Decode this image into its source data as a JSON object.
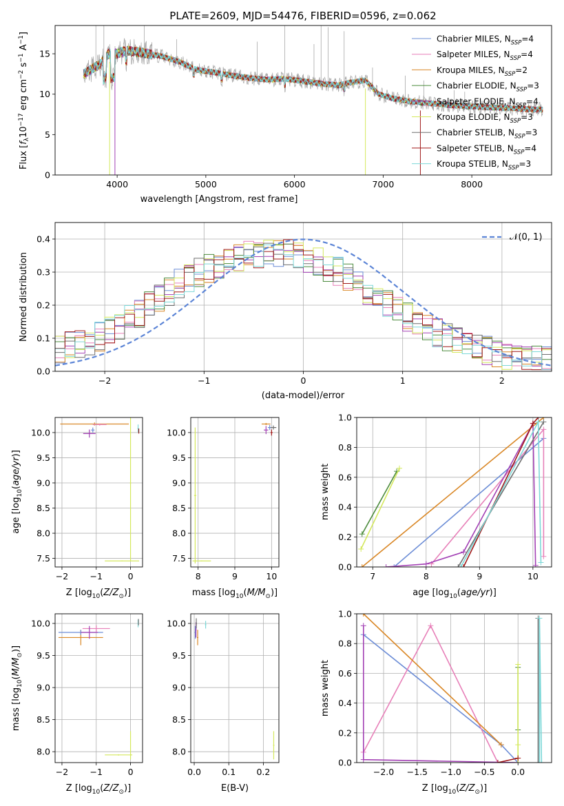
{
  "figure": {
    "title": "PLATE=2609, MJD=54476, FIBERID=0596, z=0.062"
  },
  "colors": {
    "ChabrierMILES": "#6b8cd6",
    "SalpeterMILES": "#e77fb8",
    "KroupaMILES": "#d98624",
    "ChabrierELODIE": "#4a8a3b",
    "SalpeterELODIE": "#a23fb4",
    "KroupaELODIE": "#d4e85c",
    "ChabrierSTELIB": "#6e6e6e",
    "SalpeterSTELIB": "#a01818",
    "KroupaSTELIB": "#7cd8d8"
  },
  "chart_data": [
    {
      "id": "spectrum",
      "type": "line",
      "xlabel": "wavelength [Angstrom, rest frame]",
      "ylabel": "Flux [f_λ 10^-17 erg cm^-2 s^-1 A^-1]",
      "xlim": [
        3300,
        8900
      ],
      "ylim": [
        0,
        18.5
      ],
      "xticks": [
        4000,
        5000,
        6000,
        7000,
        8000
      ],
      "yticks": [
        0,
        5,
        10,
        15
      ],
      "grid": false,
      "legend_position": "top-right",
      "data_line": {
        "name": "data",
        "color": "#a8a8a8"
      },
      "continuum_points": [
        [
          3620,
          12.5
        ],
        [
          3700,
          13.0
        ],
        [
          3800,
          13.6
        ],
        [
          3900,
          15.0
        ],
        [
          4000,
          15.0
        ],
        [
          4100,
          15.4
        ],
        [
          4300,
          15.1
        ],
        [
          4500,
          14.7
        ],
        [
          4700,
          14.0
        ],
        [
          4900,
          13.0
        ],
        [
          5100,
          12.7
        ],
        [
          5300,
          12.3
        ],
        [
          5500,
          12.0
        ],
        [
          5700,
          11.8
        ],
        [
          5900,
          11.9
        ],
        [
          6100,
          11.6
        ],
        [
          6300,
          11.3
        ],
        [
          6500,
          11.1
        ],
        [
          6600,
          11.4
        ],
        [
          6800,
          11.7
        ],
        [
          6950,
          10.0
        ],
        [
          7100,
          9.5
        ],
        [
          7300,
          9.1
        ],
        [
          7500,
          8.9
        ],
        [
          7800,
          8.6
        ],
        [
          8100,
          8.4
        ],
        [
          8400,
          8.3
        ],
        [
          8700,
          8.1
        ],
        [
          8800,
          8.1
        ]
      ],
      "series": [
        {
          "name": "Chabrier MILES",
          "nssp": "=4",
          "color_key": "ChabrierMILES"
        },
        {
          "name": "Salpeter MILES",
          "nssp": "=4",
          "color_key": "SalpeterMILES"
        },
        {
          "name": "Kroupa MILES",
          "nssp": "=2",
          "color_key": "KroupaMILES"
        },
        {
          "name": "Chabrier ELODIE",
          "nssp": "=3",
          "color_key": "ChabrierELODIE"
        },
        {
          "name": "Salpeter ELODIE",
          "nssp": "=4",
          "color_key": "SalpeterELODIE"
        },
        {
          "name": "Kroupa ELODIE",
          "nssp": "=3",
          "color_key": "KroupaELODIE"
        },
        {
          "name": "Chabrier STELIB",
          "nssp": "=3",
          "color_key": "ChabrierSTELIB"
        },
        {
          "name": "Salpeter STELIB",
          "nssp": "=4",
          "color_key": "SalpeterSTELIB"
        },
        {
          "name": "Kroupa STELIB",
          "nssp": "=3",
          "color_key": "KroupaSTELIB"
        }
      ]
    },
    {
      "id": "residuals",
      "type": "line",
      "xlabel": "(data-model)/error",
      "ylabel": "Normed distribution",
      "xlim": [
        -2.5,
        2.5
      ],
      "ylim": [
        0,
        0.45
      ],
      "xticks": [
        -2,
        -1,
        0,
        1,
        2
      ],
      "yticks": [
        0.0,
        0.1,
        0.2,
        0.3,
        0.4
      ],
      "grid": true,
      "legend_position": "top-right",
      "gaussian": {
        "label": "𝒩(0, 1)",
        "mu": 0,
        "sigma": 1,
        "color": "#5b84d6"
      },
      "base_heights": [
        0.07,
        0.075,
        0.08,
        0.09,
        0.105,
        0.12,
        0.14,
        0.155,
        0.175,
        0.2,
        0.22,
        0.24,
        0.265,
        0.285,
        0.3,
        0.31,
        0.325,
        0.335,
        0.345,
        0.35,
        0.355,
        0.36,
        0.36,
        0.355,
        0.35,
        0.34,
        0.33,
        0.315,
        0.3,
        0.285,
        0.265,
        0.245,
        0.225,
        0.205,
        0.185,
        0.165,
        0.145,
        0.13,
        0.115,
        0.1,
        0.09,
        0.08,
        0.07,
        0.065,
        0.055,
        0.05,
        0.045,
        0.04,
        0.035,
        0.03
      ],
      "series_keys": [
        "ChabrierMILES",
        "SalpeterMILES",
        "KroupaMILES",
        "ChabrierELODIE",
        "SalpeterELODIE",
        "KroupaELODIE",
        "ChabrierSTELIB",
        "SalpeterSTELIB",
        "KroupaSTELIB"
      ]
    },
    {
      "id": "age_vs_Z",
      "type": "scatter",
      "xlabel": "Z [log10(Z/Z⊙)]",
      "ylabel": "age [log10(age/yr)]",
      "xlim": [
        -2.2,
        0.35
      ],
      "ylim": [
        7.33,
        10.3
      ],
      "xticks": [
        -2,
        -1,
        0
      ],
      "yticks": [
        7.5,
        8.0,
        8.5,
        9.0,
        9.5,
        10.0
      ],
      "grid": true,
      "points": [
        {
          "color_key": "KroupaMILES",
          "x": -1.05,
          "y": 10.17,
          "xerr": 1.0,
          "yerr": 0.03
        },
        {
          "color_key": "SalpeterMILES",
          "x": -0.9,
          "y": 10.16,
          "xerr": 0.2,
          "yerr": 0.02
        },
        {
          "color_key": "SalpeterELODIE",
          "x": -1.2,
          "y": 9.98,
          "xerr": 0.18,
          "yerr": 0.08
        },
        {
          "color_key": "ChabrierMILES",
          "x": -1.1,
          "y": 10.05,
          "xerr": 0.05,
          "yerr": 0.05
        },
        {
          "color_key": "KroupaELODIE",
          "x": 0.0,
          "y": 9.0,
          "xerr": 0.02,
          "yerr": 1.55
        },
        {
          "color_key": "KroupaELODIE",
          "x": -0.25,
          "y": 7.45,
          "xerr": 0.5,
          "yerr": 0.01
        },
        {
          "color_key": "KroupaSTELIB",
          "x": 0.22,
          "y": 10.08,
          "xerr": 0.02,
          "yerr": 0.08
        },
        {
          "color_key": "SalpeterSTELIB",
          "x": 0.24,
          "y": 10.03,
          "xerr": 0.01,
          "yerr": 0.05
        }
      ]
    },
    {
      "id": "age_vs_mass",
      "type": "scatter",
      "xlabel": "mass [log10(M/M⊙)]",
      "ylabel": "",
      "xlim": [
        7.8,
        10.2
      ],
      "ylim": [
        7.33,
        10.3
      ],
      "xticks": [
        8,
        9,
        10
      ],
      "yticks": [
        7.5,
        8.0,
        8.5,
        9.0,
        9.5,
        10.0
      ],
      "grid": true,
      "points": [
        {
          "color_key": "KroupaELODIE",
          "x": 7.92,
          "y": 8.75,
          "xerr": 0.03,
          "yerr": 1.35
        },
        {
          "color_key": "KroupaELODIE",
          "x": 8.1,
          "y": 7.45,
          "xerr": 0.25,
          "yerr": 0.01
        },
        {
          "color_key": "KroupaMILES",
          "x": 9.85,
          "y": 10.17,
          "xerr": 0.12,
          "yerr": 0.02
        },
        {
          "color_key": "SalpeterELODIE",
          "x": 9.85,
          "y": 10.05,
          "xerr": 0.06,
          "yerr": 0.08
        },
        {
          "color_key": "ChabrierMILES",
          "x": 9.95,
          "y": 10.1,
          "xerr": 0.05,
          "yerr": 0.05
        },
        {
          "color_key": "SalpeterSTELIB",
          "x": 10.0,
          "y": 10.0,
          "xerr": 0.03,
          "yerr": 0.06
        },
        {
          "color_key": "ChabrierSTELIB",
          "x": 10.05,
          "y": 10.1,
          "xerr": 0.08,
          "yerr": 0.04
        }
      ]
    },
    {
      "id": "weight_vs_age",
      "type": "line",
      "xlabel": "age [log10(age/yr)]",
      "ylabel": "mass weight",
      "xlim": [
        6.7,
        10.35
      ],
      "ylim": [
        0,
        1
      ],
      "xticks": [
        7,
        8,
        9,
        10
      ],
      "yticks": [
        0.0,
        0.2,
        0.4,
        0.6,
        0.8,
        1.0
      ],
      "grid": true,
      "series": [
        {
          "color_key": "ChabrierMILES",
          "x": [
            7.4,
            10.2
          ],
          "y": [
            0.0,
            0.86
          ]
        },
        {
          "color_key": "SalpeterMILES",
          "x": [
            8.1,
            10.2,
            10.2
          ],
          "y": [
            0.02,
            0.92,
            0.07
          ]
        },
        {
          "color_key": "KroupaMILES",
          "x": [
            6.8,
            10.2
          ],
          "y": [
            0.0,
            1.0
          ]
        },
        {
          "color_key": "ChabrierELODIE",
          "x": [
            6.8,
            7.45
          ],
          "y": [
            0.22,
            0.64
          ]
        },
        {
          "color_key": "SalpeterELODIE",
          "x": [
            7.25,
            8.0,
            8.7,
            10.0,
            10.05
          ],
          "y": [
            0.0,
            0.02,
            0.1,
            0.96,
            0.01
          ]
        },
        {
          "color_key": "KroupaELODIE",
          "x": [
            6.78,
            7.5
          ],
          "y": [
            0.12,
            0.66
          ]
        },
        {
          "color_key": "ChabrierSTELIB",
          "x": [
            8.6,
            10.2
          ],
          "y": [
            0.0,
            0.97
          ]
        },
        {
          "color_key": "SalpeterSTELIB",
          "x": [
            8.7,
            10.0,
            10.1
          ],
          "y": [
            0.0,
            0.96,
            1.0
          ]
        },
        {
          "color_key": "KroupaSTELIB",
          "x": [
            8.65,
            10.1,
            10.15
          ],
          "y": [
            0.0,
            0.97,
            0.03
          ]
        }
      ]
    },
    {
      "id": "mass_vs_Z",
      "type": "scatter",
      "xlabel": "Z [log10(Z/Z⊙)]",
      "ylabel": "mass [log10(M/M⊙)]",
      "xlim": [
        -2.2,
        0.35
      ],
      "ylim": [
        7.83,
        10.15
      ],
      "xticks": [
        -2,
        -1,
        0
      ],
      "yticks": [
        8.0,
        8.5,
        9.0,
        9.5,
        10.0
      ],
      "grid": true,
      "points": [
        {
          "color_key": "KroupaMILES",
          "x": -1.45,
          "y": 9.78,
          "xerr": 0.65,
          "yerr": 0.12
        },
        {
          "color_key": "ChabrierMILES",
          "x": -1.45,
          "y": 9.86,
          "xerr": 0.65,
          "yerr": 0.04
        },
        {
          "color_key": "SalpeterMILES",
          "x": -1.0,
          "y": 9.92,
          "xerr": 0.4,
          "yerr": 0.05
        },
        {
          "color_key": "SalpeterELODIE",
          "x": -1.2,
          "y": 9.86,
          "xerr": 0.25,
          "yerr": 0.1
        },
        {
          "color_key": "KroupaELODIE",
          "x": -0.35,
          "y": 7.95,
          "xerr": 0.4,
          "yerr": 0.01
        },
        {
          "color_key": "KroupaELODIE",
          "x": 0.0,
          "y": 8.1,
          "xerr": 0.01,
          "yerr": 0.22
        },
        {
          "color_key": "KroupaSTELIB",
          "x": 0.22,
          "y": 10.0,
          "xerr": 0.02,
          "yerr": 0.06
        },
        {
          "color_key": "ChabrierSTELIB",
          "x": 0.23,
          "y": 10.02,
          "xerr": 0.01,
          "yerr": 0.05
        }
      ]
    },
    {
      "id": "mass_vs_ebv",
      "type": "scatter",
      "xlabel": "E(B-V)",
      "ylabel": "",
      "xlim": [
        -0.01,
        0.245
      ],
      "ylim": [
        7.83,
        10.15
      ],
      "xticks": [
        0.0,
        0.1,
        0.2
      ],
      "yticks": [
        8.0,
        8.5,
        9.0,
        9.5,
        10.0
      ],
      "grid": true,
      "points": [
        {
          "color_key": "ChabrierMILES",
          "x": 0.003,
          "y": 9.86,
          "xerr": 0.002,
          "yerr": 0.1
        },
        {
          "color_key": "SalpeterELODIE",
          "x": 0.005,
          "y": 9.9,
          "xerr": 0.002,
          "yerr": 0.12
        },
        {
          "color_key": "KroupaMILES",
          "x": 0.01,
          "y": 9.78,
          "xerr": 0.002,
          "yerr": 0.12
        },
        {
          "color_key": "ChabrierSTELIB",
          "x": 0.006,
          "y": 10.0,
          "xerr": 0.002,
          "yerr": 0.08
        },
        {
          "color_key": "KroupaSTELIB",
          "x": 0.033,
          "y": 9.98,
          "xerr": 0.002,
          "yerr": 0.06
        },
        {
          "color_key": "KroupaELODIE",
          "x": 0.23,
          "y": 8.1,
          "xerr": 0.002,
          "yerr": 0.22
        }
      ]
    },
    {
      "id": "weight_vs_Z",
      "type": "line",
      "xlabel": "Z [log10(Z/Z⊙)]",
      "ylabel": "mass weight",
      "xlim": [
        -2.4,
        0.5
      ],
      "ylim": [
        0,
        1
      ],
      "xticks": [
        -2.0,
        -1.5,
        -1.0,
        -0.5,
        0.0
      ],
      "yticks": [
        0.0,
        0.2,
        0.4,
        0.6,
        0.8,
        1.0
      ],
      "grid": true,
      "series": [
        {
          "color_key": "ChabrierMILES",
          "x": [
            -2.3,
            -0.25,
            0.0
          ],
          "y": [
            0.86,
            0.12,
            0.0
          ]
        },
        {
          "color_key": "SalpeterMILES",
          "x": [
            -2.3,
            -1.3,
            -0.3
          ],
          "y": [
            0.07,
            0.92,
            0.0
          ]
        },
        {
          "color_key": "KroupaMILES",
          "x": [
            -2.3,
            -0.25
          ],
          "y": [
            1.0,
            0.12
          ]
        },
        {
          "color_key": "ChabrierELODIE",
          "x": [
            0.0,
            0.0
          ],
          "y": [
            0.22,
            0.64
          ]
        },
        {
          "color_key": "SalpeterELODIE",
          "x": [
            -2.3,
            -2.3,
            0.0
          ],
          "y": [
            0.92,
            0.02,
            0.0
          ]
        },
        {
          "color_key": "KroupaELODIE",
          "x": [
            0.0,
            0.0,
            0.0
          ],
          "y": [
            0.12,
            0.66,
            0.0
          ]
        },
        {
          "color_key": "ChabrierSTELIB",
          "x": [
            0.3,
            0.3
          ],
          "y": [
            0.0,
            0.97
          ]
        },
        {
          "color_key": "SalpeterSTELIB",
          "x": [
            -0.3,
            0.0
          ],
          "y": [
            0.0,
            0.03
          ]
        },
        {
          "color_key": "KroupaSTELIB",
          "x": [
            0.32,
            0.32,
            0.35
          ],
          "y": [
            0.0,
            0.97,
            0.0
          ]
        }
      ]
    }
  ]
}
